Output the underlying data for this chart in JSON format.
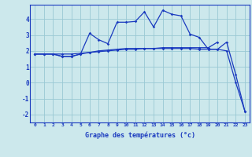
{
  "xlabel": "Graphe des températures (°c)",
  "bg_color": "#cce8ec",
  "line_color": "#1a3abf",
  "grid_color": "#99c8d4",
  "xlim": [
    -0.5,
    23.5
  ],
  "ylim": [
    -2.5,
    4.9
  ],
  "xticks": [
    0,
    1,
    2,
    3,
    4,
    5,
    6,
    7,
    8,
    9,
    10,
    11,
    12,
    13,
    14,
    15,
    16,
    17,
    18,
    19,
    20,
    21,
    22,
    23
  ],
  "yticks": [
    -2,
    -1,
    0,
    1,
    2,
    3,
    4
  ],
  "line1_x": [
    0,
    1,
    2,
    3,
    4,
    5,
    6,
    7,
    8,
    9,
    10,
    11,
    12,
    13,
    14,
    15,
    16,
    17,
    18,
    19,
    20
  ],
  "line1_y": [
    1.8,
    1.8,
    1.8,
    1.8,
    1.8,
    1.85,
    1.9,
    1.95,
    2.0,
    2.05,
    2.1,
    2.1,
    2.15,
    2.15,
    2.2,
    2.2,
    2.2,
    2.2,
    2.2,
    2.2,
    2.55
  ],
  "line2_x": [
    0,
    1,
    2,
    3,
    4,
    5,
    6,
    7,
    8,
    9,
    10,
    11,
    12,
    13,
    14,
    15,
    16,
    17,
    18,
    19,
    20,
    21,
    22,
    23
  ],
  "line2_y": [
    1.8,
    1.8,
    1.8,
    1.65,
    1.65,
    1.8,
    3.1,
    2.7,
    2.45,
    3.8,
    3.8,
    3.85,
    4.45,
    3.5,
    4.55,
    4.3,
    4.2,
    3.05,
    2.85,
    2.1,
    2.1,
    2.0,
    0.0,
    -1.8
  ],
  "line3_x": [
    0,
    1,
    2,
    3,
    4,
    5,
    6,
    7,
    8,
    9,
    10,
    11,
    12,
    13,
    14,
    15,
    16,
    17,
    18,
    19,
    20,
    21,
    22,
    23
  ],
  "line3_y": [
    1.8,
    1.8,
    1.8,
    1.65,
    1.65,
    1.8,
    1.9,
    2.0,
    2.05,
    2.1,
    2.15,
    2.15,
    2.15,
    2.15,
    2.15,
    2.15,
    2.15,
    2.15,
    2.1,
    2.1,
    2.1,
    2.55,
    0.5,
    -1.8
  ]
}
